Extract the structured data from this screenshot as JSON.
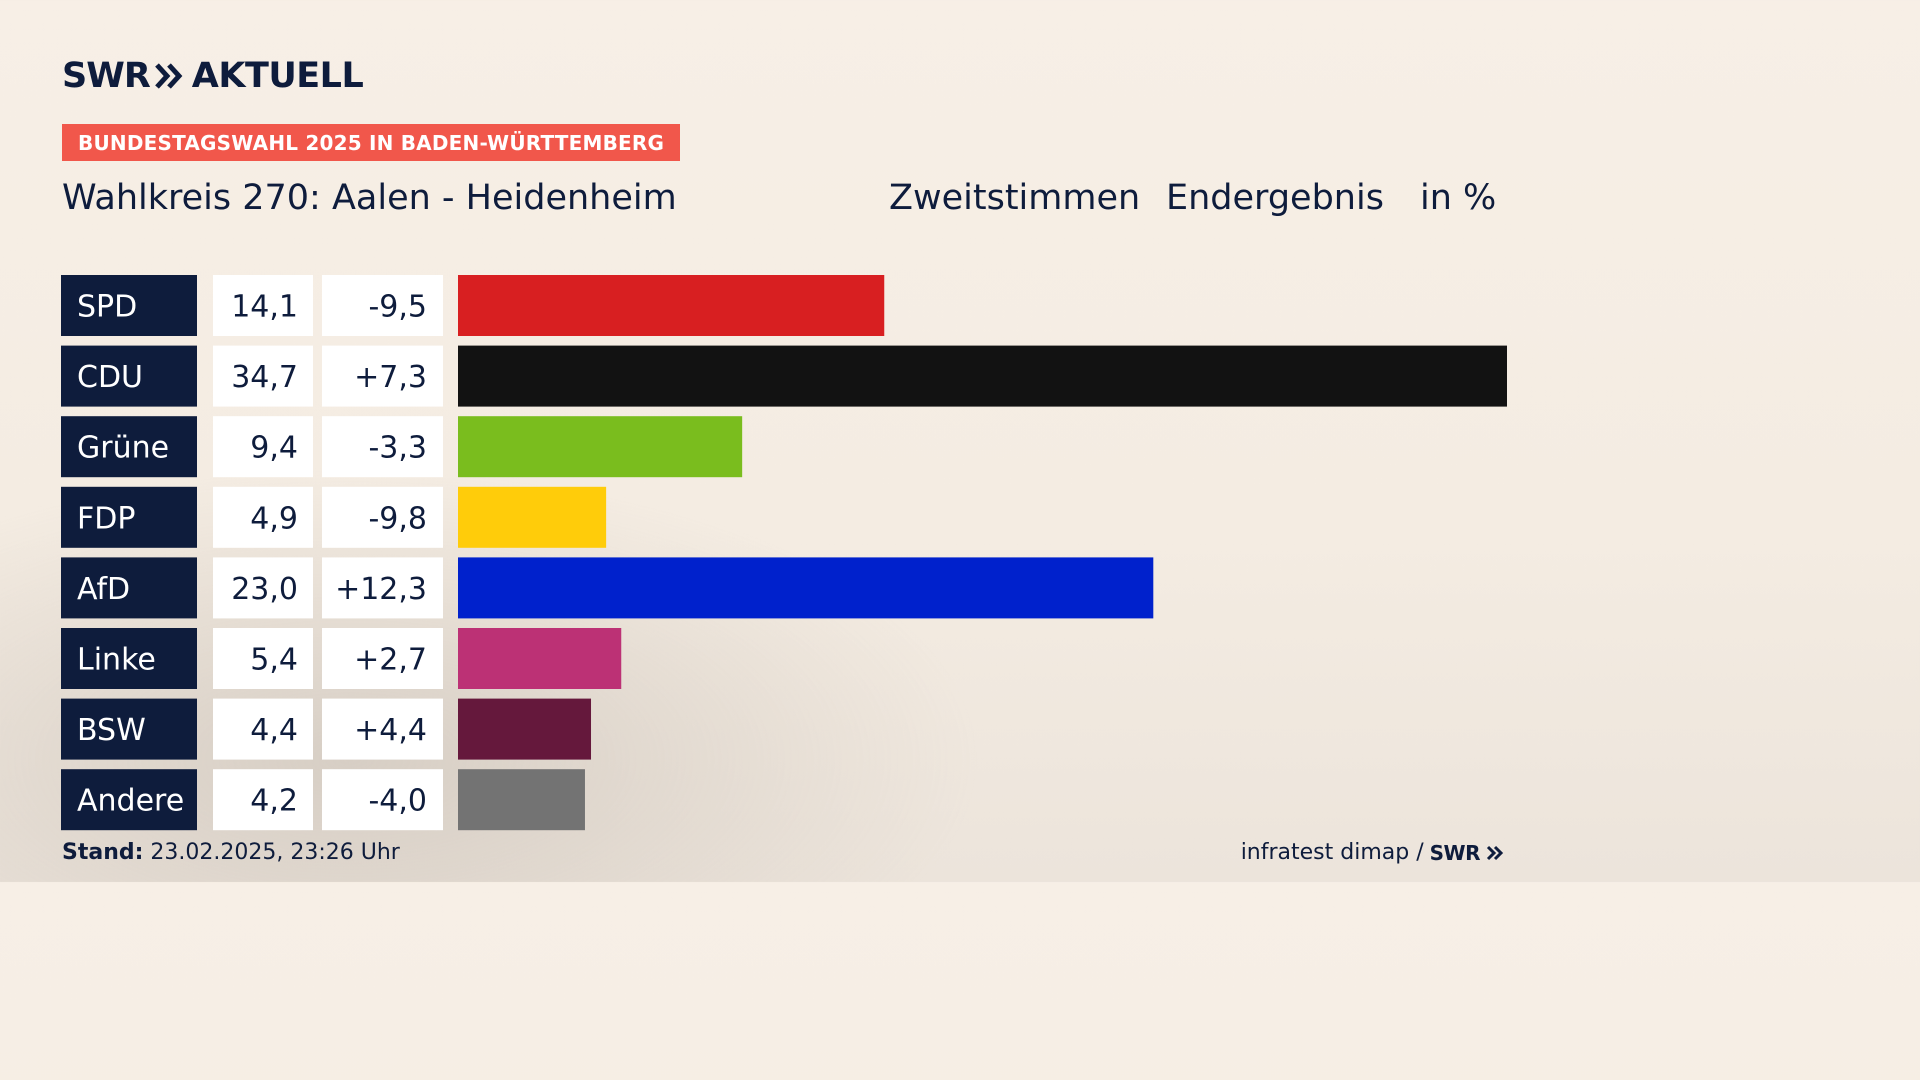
{
  "brand": {
    "logo_swr": "SWR",
    "logo_aktuell": "AKTUELL"
  },
  "banner": "BUNDESTAGSWAHL 2025 IN BADEN-WÜRTTEMBERG",
  "header": {
    "title": "Wahlkreis 270: Aalen - Heidenheim",
    "vote_type": "Zweitstimmen",
    "result_type": "Endergebnis",
    "unit": "in %"
  },
  "footer": {
    "stand_label": "Stand:",
    "stand_value": "23.02.2025, 23:26 Uhr",
    "source": "infratest dimap /",
    "source_brand": "SWR"
  },
  "chart_data": {
    "type": "bar",
    "categories": [
      "SPD",
      "CDU",
      "Grüne",
      "FDP",
      "AfD",
      "Linke",
      "BSW",
      "Andere"
    ],
    "values": [
      14.1,
      34.7,
      9.4,
      4.9,
      23.0,
      5.4,
      4.4,
      4.2
    ],
    "value_labels": [
      "14,1",
      "34,7",
      "9,4",
      "4,9",
      "23,0",
      "5,4",
      "4,4",
      "4,2"
    ],
    "change_labels": [
      "-9,5",
      "+7,3",
      "-3,3",
      "-9,8",
      "+12,3",
      "+2,7",
      "+4,4",
      "-4,0"
    ],
    "changes": [
      -9.5,
      7.3,
      -3.3,
      -9.8,
      12.3,
      2.7,
      4.4,
      -4.0
    ],
    "colors": [
      "#d81f21",
      "#121212",
      "#7abd1e",
      "#ffcc0a",
      "#0021cc",
      "#bc3175",
      "#65183c",
      "#737373"
    ],
    "xlim": [
      0,
      34.7
    ]
  }
}
